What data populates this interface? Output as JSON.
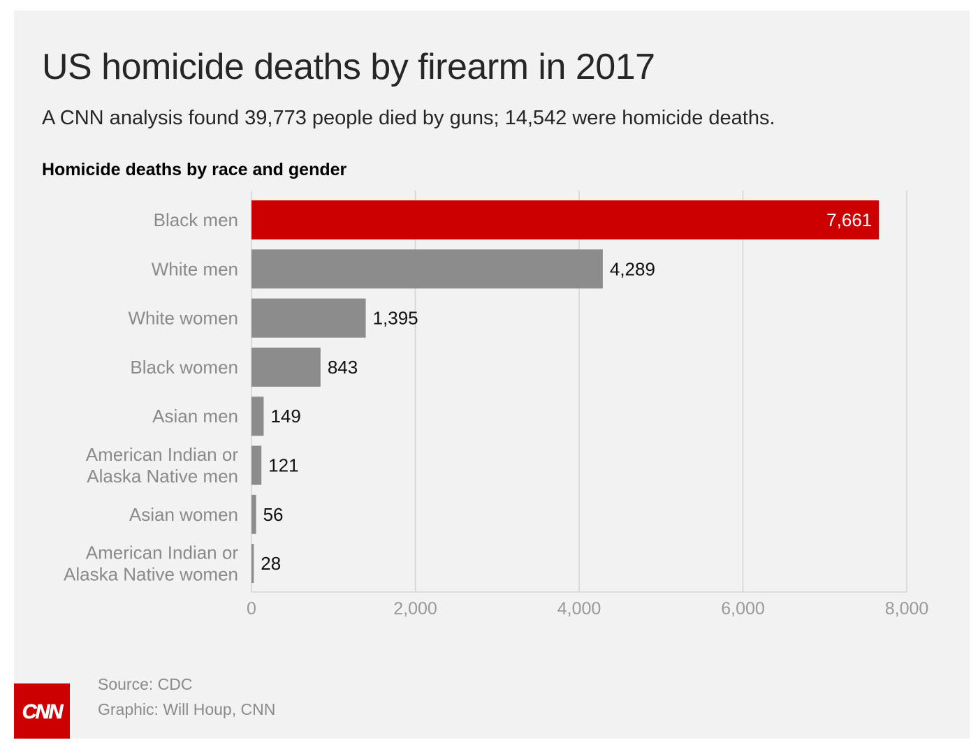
{
  "title": "US homicide deaths by firearm in 2017",
  "subtitle": "A CNN analysis found 39,773 people died by guns; 14,542 were homicide deaths.",
  "chart_heading": "Homicide deaths by race and gender",
  "source": "Source: CDC",
  "credit": "Graphic: Will Houp, CNN",
  "logo_text": "CNN",
  "colors": {
    "background": "#f2f2f2",
    "highlight_bar": "#cc0000",
    "bar": "#8c8c8c",
    "grid": "#d4d4d4"
  },
  "chart_data": {
    "type": "bar",
    "orientation": "horizontal",
    "categories": [
      [
        "Black men"
      ],
      [
        "White men"
      ],
      [
        "White women"
      ],
      [
        "Black women"
      ],
      [
        "Asian men"
      ],
      [
        "American Indian or",
        "Alaska Native men"
      ],
      [
        "Asian women"
      ],
      [
        "American Indian or",
        "Alaska Native women"
      ]
    ],
    "values": [
      7661,
      4289,
      1395,
      843,
      149,
      121,
      56,
      28
    ],
    "value_labels": [
      "7,661",
      "4,289",
      "1,395",
      "843",
      "149",
      "121",
      "56",
      "28"
    ],
    "highlight_index": 0,
    "xlim": [
      0,
      8000
    ],
    "xticks": [
      0,
      2000,
      4000,
      6000,
      8000
    ],
    "xtick_labels": [
      "0",
      "2,000",
      "4,000",
      "6,000",
      "8,000"
    ],
    "grid": true
  }
}
